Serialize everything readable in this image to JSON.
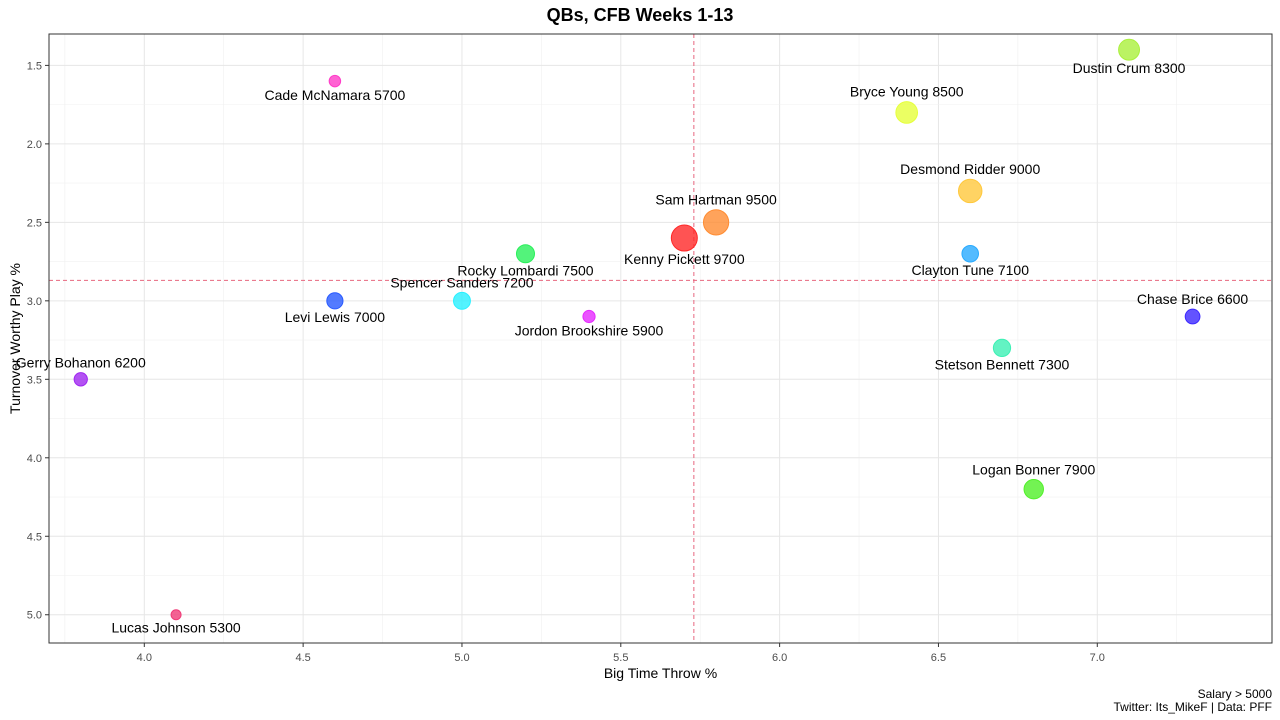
{
  "chart_data": {
    "type": "scatter",
    "title": "QBs, CFB Weeks 1-13",
    "xlabel": "Big Time Throw %",
    "ylabel": "Turnover Worthy Play %",
    "xlim": [
      3.7,
      7.55
    ],
    "ylim": [
      1.3,
      5.18
    ],
    "y_reversed": true,
    "x_ticks": [
      "4.0",
      "4.5",
      "5.0",
      "5.5",
      "6.0",
      "6.5",
      "7.0"
    ],
    "y_ticks": [
      "1.5",
      "2.0",
      "2.5",
      "3.0",
      "3.5",
      "4.0",
      "4.5",
      "5.0"
    ],
    "x_tick_values": [
      4.0,
      4.5,
      5.0,
      5.5,
      6.0,
      6.5,
      7.0
    ],
    "y_tick_values": [
      1.5,
      2.0,
      2.5,
      3.0,
      3.5,
      4.0,
      4.5,
      5.0
    ],
    "reference_lines": {
      "x": 5.73,
      "y": 2.87
    },
    "grid": true,
    "points": [
      {
        "label": "Dustin Crum 8300",
        "x": 7.1,
        "y": 1.4,
        "salary": 8300,
        "color": "#aaf03c",
        "label_pos": "below"
      },
      {
        "label": "Cade McNamara 5700",
        "x": 4.6,
        "y": 1.6,
        "salary": 5700,
        "color": "#ff3cc8",
        "label_pos": "below"
      },
      {
        "label": "Bryce Young 8500",
        "x": 6.4,
        "y": 1.8,
        "salary": 8500,
        "color": "#e6ff3c",
        "label_pos": "above"
      },
      {
        "label": "Desmond Ridder 9000",
        "x": 6.6,
        "y": 2.3,
        "salary": 9000,
        "color": "#ffc83c",
        "label_pos": "above"
      },
      {
        "label": "Sam Hartman 9500",
        "x": 5.8,
        "y": 2.5,
        "salary": 9500,
        "color": "#ff8c32",
        "label_pos": "above"
      },
      {
        "label": "Kenny Pickett 9700",
        "x": 5.7,
        "y": 2.6,
        "salary": 9700,
        "color": "#ff2828",
        "label_pos": "below"
      },
      {
        "label": "Rocky Lombardi 7500",
        "x": 5.2,
        "y": 2.7,
        "salary": 7500,
        "color": "#28f05a",
        "label_pos": "below"
      },
      {
        "label": "Clayton Tune 7100",
        "x": 6.6,
        "y": 2.7,
        "salary": 7100,
        "color": "#28aaff",
        "label_pos": "below"
      },
      {
        "label": "Levi Lewis 7000",
        "x": 4.6,
        "y": 3.0,
        "salary": 7000,
        "color": "#285aff",
        "label_pos": "below"
      },
      {
        "label": "Spencer Sanders 7200",
        "x": 5.0,
        "y": 3.0,
        "salary": 7200,
        "color": "#28f0ff",
        "label_pos": "above"
      },
      {
        "label": "Jordon Brookshire 5900",
        "x": 5.4,
        "y": 3.1,
        "salary": 5900,
        "color": "#e628ff",
        "label_pos": "below"
      },
      {
        "label": "Chase Brice 6600",
        "x": 7.3,
        "y": 3.1,
        "salary": 6600,
        "color": "#3c28ff",
        "label_pos": "above"
      },
      {
        "label": "Stetson Bennett 7300",
        "x": 6.7,
        "y": 3.3,
        "salary": 7300,
        "color": "#3cf0b4",
        "label_pos": "below"
      },
      {
        "label": "Gerry Bohanon 6200",
        "x": 3.8,
        "y": 3.5,
        "salary": 6200,
        "color": "#a028f0",
        "label_pos": "above"
      },
      {
        "label": "Logan Bonner 7900",
        "x": 6.8,
        "y": 4.2,
        "salary": 7900,
        "color": "#50f028",
        "label_pos": "above"
      },
      {
        "label": "Lucas Johnson 5300",
        "x": 4.1,
        "y": 5.0,
        "salary": 5300,
        "color": "#f03c78",
        "label_pos": "below"
      }
    ]
  },
  "caption": {
    "line1": "Salary > 5000",
    "line2": "Twitter: Its_MikeF | Data: PFF"
  }
}
